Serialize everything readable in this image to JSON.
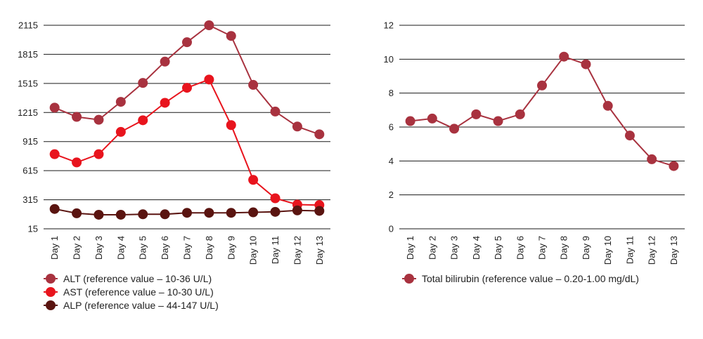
{
  "chart_data": [
    {
      "type": "line",
      "categories": [
        "Day 1",
        "Day 2",
        "Day 3",
        "Day 4",
        "Day 5",
        "Day 6",
        "Day 7",
        "Day 8",
        "Day 9",
        "Day 10",
        "Day 11",
        "Day 12",
        "Day 13"
      ],
      "yticks": [
        "15",
        "315",
        "615",
        "915",
        "1215",
        "1515",
        "1815",
        "2115"
      ],
      "ylim": [
        15,
        2115
      ],
      "grid": true,
      "legend_position": "bottom-left",
      "series": [
        {
          "name": "ALT (reference value – 10-36 U/L)",
          "color": "#a8323f",
          "values": [
            1265,
            1170,
            1140,
            1325,
            1520,
            1740,
            1940,
            2115,
            2005,
            1500,
            1225,
            1070,
            990
          ]
        },
        {
          "name": "AST (reference value – 10-30 U/L)",
          "color": "#e8141d",
          "values": [
            785,
            700,
            785,
            1015,
            1135,
            1315,
            1470,
            1555,
            1085,
            520,
            330,
            265,
            260
          ]
        },
        {
          "name": "ALP (reference value – 44-147 U/L)",
          "color": "#5a1410",
          "values": [
            220,
            175,
            160,
            160,
            165,
            165,
            180,
            180,
            180,
            185,
            190,
            205,
            200
          ]
        }
      ]
    },
    {
      "type": "line",
      "categories": [
        "Day 1",
        "Day 2",
        "Day 3",
        "Day 4",
        "Day 5",
        "Day 6",
        "Day 7",
        "Day 8",
        "Day 9",
        "Day 10",
        "Day 11",
        "Day 12",
        "Day 13"
      ],
      "yticks": [
        "0",
        "2",
        "4",
        "6",
        "8",
        "10",
        "12"
      ],
      "ylim": [
        0,
        12
      ],
      "grid": true,
      "legend_position": "bottom-left",
      "series": [
        {
          "name": "Total bilirubin (reference value – 0.20-1.00 mg/dL)",
          "color": "#a8323f",
          "values": [
            6.35,
            6.5,
            5.9,
            6.75,
            6.35,
            6.75,
            8.45,
            10.15,
            9.7,
            7.25,
            5.5,
            4.1,
            3.7
          ]
        }
      ]
    }
  ]
}
